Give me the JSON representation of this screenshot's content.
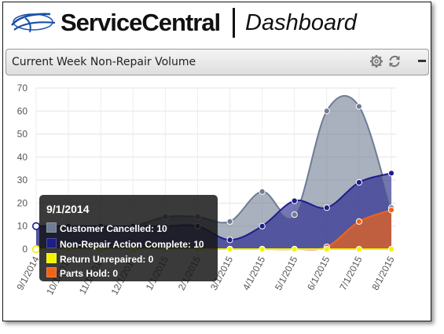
{
  "header": {
    "brand": "ServiceCentral",
    "page_title": "Dashboard",
    "logo_icon": "swoosh-logo-icon"
  },
  "panel": {
    "title": "Current Week Non-Repair Volume",
    "icons": [
      "gear-icon",
      "refresh-icon",
      "minimize-icon"
    ]
  },
  "tooltip": {
    "title": "9/1/2014",
    "rows": [
      {
        "label": "Customer Cancelled: 10",
        "color": "#6f7c93"
      },
      {
        "label": "Non-Repair Action Complete: 10",
        "color": "#1e1e8a"
      },
      {
        "label": "Return Unrepaired: 0",
        "color": "#f4f400"
      },
      {
        "label": "Parts Hold: 0",
        "color": "#f06418"
      }
    ]
  },
  "chart_data": {
    "type": "area",
    "categories": [
      "9/1/2014",
      "10/1/2014",
      "11/1/2014",
      "12/1/2014",
      "1/1/2015",
      "2/1/2015",
      "3/1/2015",
      "4/1/2015",
      "5/1/2015",
      "6/1/2015",
      "7/1/2015",
      "8/1/2015"
    ],
    "ylim": [
      0,
      70
    ],
    "yticks": [
      0,
      10,
      20,
      30,
      40,
      50,
      60,
      70
    ],
    "grid": true,
    "series": [
      {
        "name": "Customer Cancelled",
        "color": "#6f7c93",
        "values": [
          10,
          10,
          10,
          10,
          14,
          14,
          12,
          25,
          15,
          60,
          62,
          18
        ]
      },
      {
        "name": "Non-Repair Action Complete",
        "color": "#1e1e8a",
        "values": [
          10,
          10,
          10,
          10,
          10,
          10,
          4,
          10,
          21,
          18,
          29,
          33
        ]
      },
      {
        "name": "Parts Hold",
        "color": "#f06418",
        "values": [
          0,
          0,
          0,
          0,
          0,
          0,
          0,
          0,
          0,
          1,
          12,
          17
        ]
      },
      {
        "name": "Return Unrepaired",
        "color": "#f4f400",
        "values": [
          0,
          0,
          0,
          0,
          0,
          0,
          0,
          0,
          0,
          0,
          0,
          0
        ]
      }
    ]
  }
}
